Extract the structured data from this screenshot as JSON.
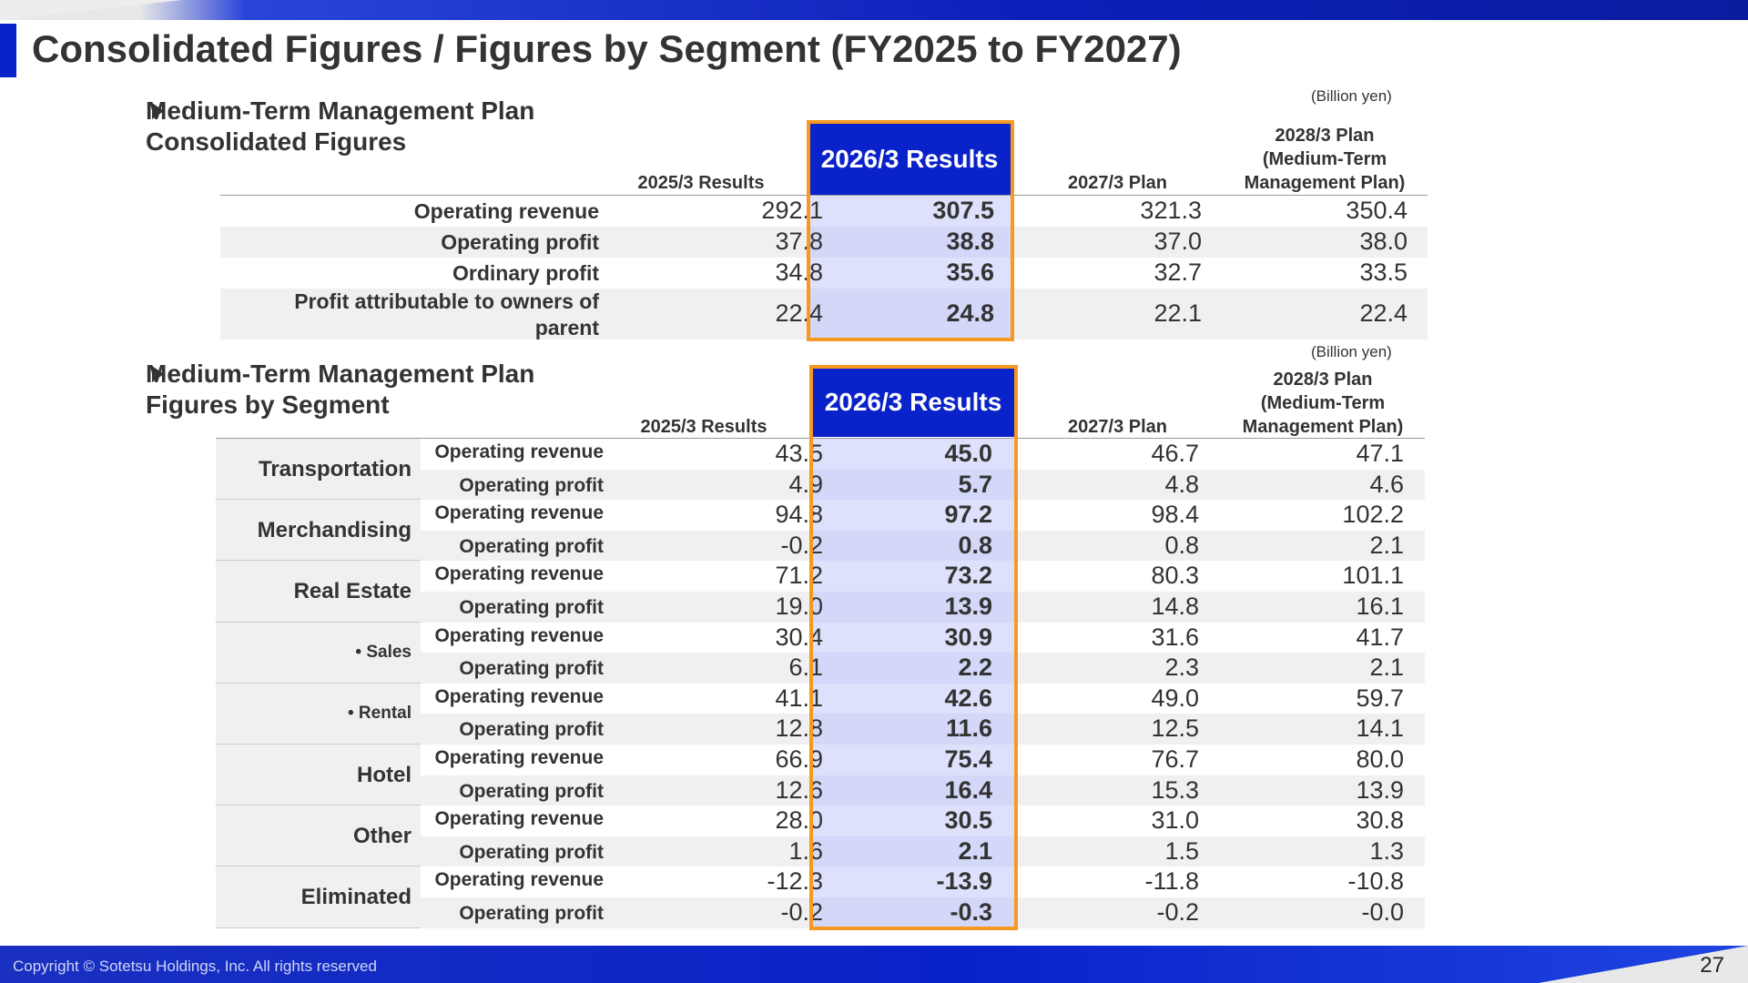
{
  "page": {
    "title": "Consolidated Figures / Figures by Segment (FY2025 to FY2027)",
    "copyright": "Copyright © Sotetsu Holdings, Inc. All rights reserved",
    "page_number": "27"
  },
  "consolidated": {
    "heading_line1": "Medium-Term Management Plan",
    "heading_line2": "Consolidated Figures",
    "unit": "(Billion yen)",
    "columns": {
      "col1": "2025/3 Results",
      "col2": "2026/3 Results",
      "col3": "2027/3 Plan",
      "col4_line1": "2028/3 Plan",
      "col4_line2": "(Medium-Term",
      "col4_line3": "Management Plan)"
    },
    "rows": [
      {
        "label": "Operating revenue",
        "v1": "292.1",
        "v2": "307.5",
        "v3": "321.3",
        "v4": "350.4"
      },
      {
        "label": "Operating profit",
        "v1": "37.8",
        "v2": "38.8",
        "v3": "37.0",
        "v4": "38.0"
      },
      {
        "label": "Ordinary profit",
        "v1": "34.8",
        "v2": "35.6",
        "v3": "32.7",
        "v4": "33.5"
      },
      {
        "label_line1": "Profit attributable to owners of",
        "label_line2": "parent",
        "v1": "22.4",
        "v2": "24.8",
        "v3": "22.1",
        "v4": "22.4"
      }
    ]
  },
  "segments": {
    "heading_line1": "Medium-Term Management Plan",
    "heading_line2": "Figures by Segment",
    "unit": "(Billion yen)",
    "columns": {
      "col1": "2025/3 Results",
      "col2": "2026/3 Results",
      "col3": "2027/3 Plan",
      "col4_line1": "2028/3 Plan",
      "col4_line2": "(Medium-Term",
      "col4_line3": "Management Plan)"
    },
    "groups": [
      {
        "name": "Transportation",
        "rev": {
          "label": "Operating revenue",
          "v1": "43.5",
          "v2": "45.0",
          "v3": "46.7",
          "v4": "47.1"
        },
        "prof": {
          "label": "Operating profit",
          "v1": "4.9",
          "v2": "5.7",
          "v3": "4.8",
          "v4": "4.6"
        }
      },
      {
        "name": "Merchandising",
        "rev": {
          "label": "Operating revenue",
          "v1": "94.8",
          "v2": "97.2",
          "v3": "98.4",
          "v4": "102.2"
        },
        "prof": {
          "label": "Operating profit",
          "v1": "-0.2",
          "v2": "0.8",
          "v3": "0.8",
          "v4": "2.1"
        }
      },
      {
        "name": "Real Estate",
        "rev": {
          "label": "Operating revenue",
          "v1": "71.2",
          "v2": "73.2",
          "v3": "80.3",
          "v4": "101.1"
        },
        "prof": {
          "label": "Operating profit",
          "v1": "19.0",
          "v2": "13.9",
          "v3": "14.8",
          "v4": "16.1"
        }
      },
      {
        "name": "• Sales",
        "rev": {
          "label": "Operating revenue",
          "v1": "30.4",
          "v2": "30.9",
          "v3": "31.6",
          "v4": "41.7"
        },
        "prof": {
          "label": "Operating profit",
          "v1": "6.1",
          "v2": "2.2",
          "v3": "2.3",
          "v4": "2.1"
        }
      },
      {
        "name": "• Rental",
        "rev": {
          "label": "Operating revenue",
          "v1": "41.1",
          "v2": "42.6",
          "v3": "49.0",
          "v4": "59.7"
        },
        "prof": {
          "label": "Operating profit",
          "v1": "12.8",
          "v2": "11.6",
          "v3": "12.5",
          "v4": "14.1"
        }
      },
      {
        "name": "Hotel",
        "rev": {
          "label": "Operating revenue",
          "v1": "66.9",
          "v2": "75.4",
          "v3": "76.7",
          "v4": "80.0"
        },
        "prof": {
          "label": "Operating profit",
          "v1": "12.6",
          "v2": "16.4",
          "v3": "15.3",
          "v4": "13.9"
        }
      },
      {
        "name": "Other",
        "rev": {
          "label": "Operating revenue",
          "v1": "28.0",
          "v2": "30.5",
          "v3": "31.0",
          "v4": "30.8"
        },
        "prof": {
          "label": "Operating profit",
          "v1": "1.6",
          "v2": "2.1",
          "v3": "1.5",
          "v4": "1.3"
        }
      },
      {
        "name": "Eliminated",
        "rev": {
          "label": "Operating revenue",
          "v1": "-12.3",
          "v2": "-13.9",
          "v3": "-11.8",
          "v4": "-10.8"
        },
        "prof": {
          "label": "Operating profit",
          "v1": "-0.2",
          "v2": "-0.3",
          "v3": "-0.2",
          "v4": "-0.0"
        }
      }
    ]
  },
  "colors": {
    "brand_blue": "#0a22c9",
    "highlight_border": "#f79820",
    "highlight_fill": "#dde1fb"
  }
}
